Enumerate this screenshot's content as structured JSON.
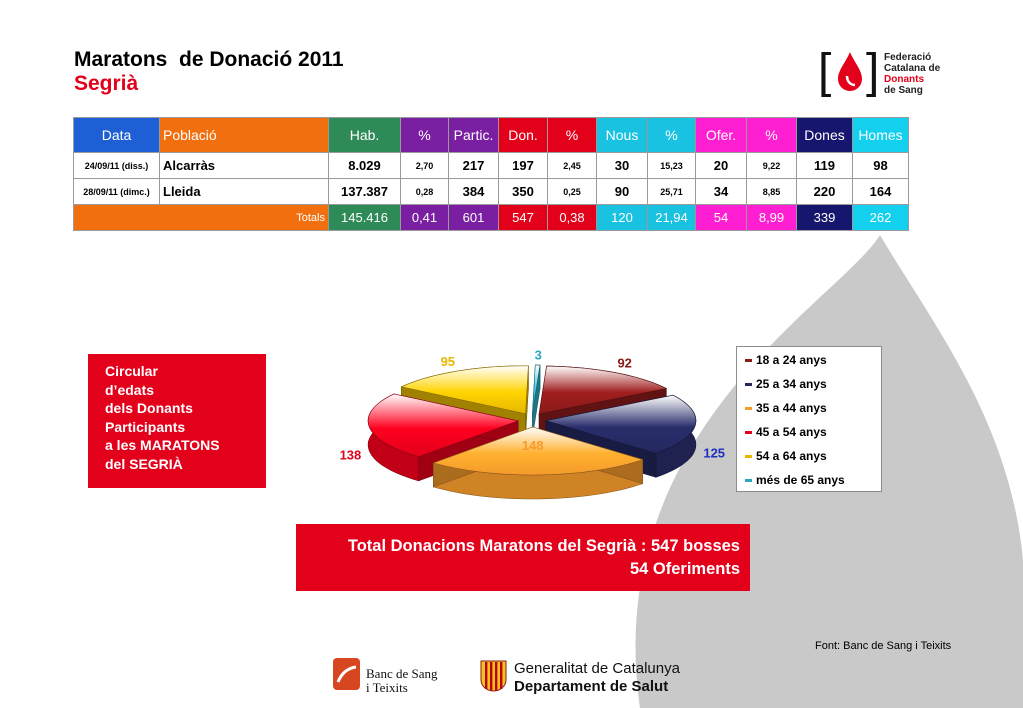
{
  "header": {
    "title": "Maratons  de Donació 2011",
    "subtitle": "Segrià"
  },
  "logo_federacio": {
    "lines": [
      "Federació",
      "Catalana de",
      "Donants",
      "de Sang"
    ]
  },
  "table": {
    "headers": [
      "Data",
      "Població",
      "Hab.",
      "%",
      "Partic.",
      "Don.",
      "%",
      "Nous",
      "%",
      "Ofer.",
      "%",
      "Dones",
      "Homes"
    ],
    "header_colors": [
      "#1f5fd6",
      "#f26f10",
      "#2e8b57",
      "#7a1fa2",
      "#7a1fa2",
      "#e3001b",
      "#e3001b",
      "#19c2e0",
      "#19c2e0",
      "#ff1fd2",
      "#ff1fd2",
      "#16166e",
      "#12d0ee"
    ],
    "rows": [
      [
        "24/09/11 (diss.)",
        "Alcarràs",
        "8.029",
        "2,70",
        "217",
        "197",
        "2,45",
        "30",
        "15,23",
        "20",
        "9,22",
        "119",
        "98"
      ],
      [
        "28/09/11 (dimc.)",
        "Lleida",
        "137.387",
        "0,28",
        "384",
        "350",
        "0,25",
        "90",
        "25,71",
        "34",
        "8,85",
        "220",
        "164"
      ]
    ],
    "totals_label": "Totals",
    "totals": [
      "145.416",
      "0,41",
      "601",
      "547",
      "0,38",
      "120",
      "21,94",
      "54",
      "8,99",
      "339",
      "262"
    ],
    "totals_colors": [
      "#2e8b57",
      "#7a1fa2",
      "#7a1fa2",
      "#e3001b",
      "#e3001b",
      "#19c2e0",
      "#19c2e0",
      "#ff1fd2",
      "#ff1fd2",
      "#16166e",
      "#12d0ee"
    ],
    "totals_label_color": "#f26f10"
  },
  "info_box": {
    "lines": [
      "Circular",
      "d’edats",
      "dels Donants",
      "Participants",
      "a les MARATONS",
      "del SEGRIÀ"
    ]
  },
  "chart_data": {
    "type": "pie",
    "categories": [
      "18 a 24 anys",
      "25 a 34 anys",
      "35 a 44 anys",
      "45 a 54 anys",
      "54 a 64 anys",
      "més de 65 anys"
    ],
    "values": [
      92,
      125,
      148,
      138,
      95,
      3
    ],
    "colors": [
      "#8b1a1a",
      "#24285e",
      "#f59a2b",
      "#e3001b",
      "#e6b800",
      "#2aa7c0"
    ],
    "label_colors": [
      "#8b1a1a",
      "#1f2fbf",
      "#f59a2b",
      "#e3001b",
      "#e6b800",
      "#2aa7c0"
    ],
    "legend_position": "right",
    "style": "3d-exploded"
  },
  "total_box": {
    "line1": "Total Donacions Maratons del Segrià : 547 bosses",
    "line2": "54 Oferiments"
  },
  "source": "Font: Banc de Sang i Teixits",
  "logo_banc": {
    "line1": "Banc de Sang",
    "line2": "i Teixits"
  },
  "logo_generalitat": {
    "line1": "Generalitat de Catalunya",
    "line2": "Departament de Salut"
  }
}
